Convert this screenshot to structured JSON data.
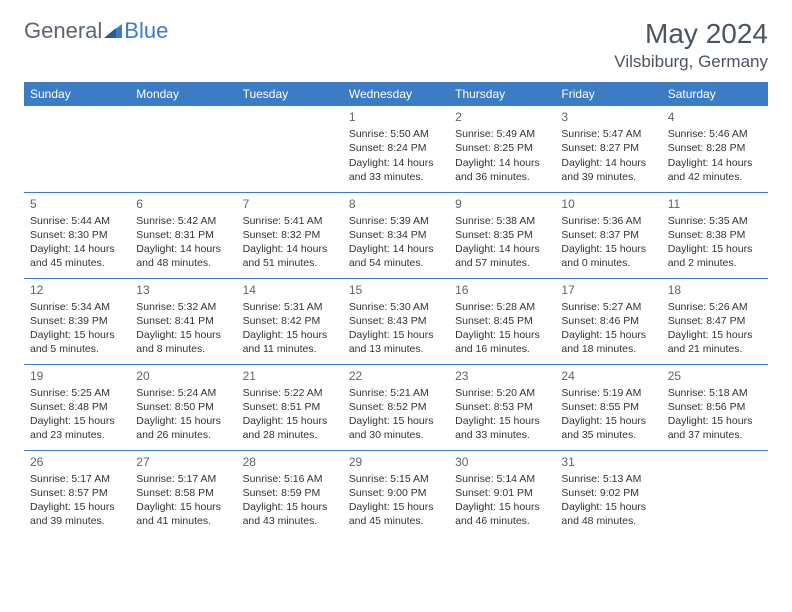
{
  "brand": {
    "word1": "General",
    "word2": "Blue"
  },
  "header": {
    "title": "May 2024",
    "location": "Vilsbiburg, Germany"
  },
  "colors": {
    "accent": "#3b7cc4",
    "text_muted": "#5a6570",
    "text": "#333333",
    "bg": "#ffffff"
  },
  "calendar": {
    "type": "table",
    "days_of_week": [
      "Sunday",
      "Monday",
      "Tuesday",
      "Wednesday",
      "Thursday",
      "Friday",
      "Saturday"
    ],
    "weeks": [
      [
        null,
        null,
        null,
        {
          "n": "1",
          "sr": "Sunrise: 5:50 AM",
          "ss": "Sunset: 8:24 PM",
          "d1": "Daylight: 14 hours",
          "d2": "and 33 minutes."
        },
        {
          "n": "2",
          "sr": "Sunrise: 5:49 AM",
          "ss": "Sunset: 8:25 PM",
          "d1": "Daylight: 14 hours",
          "d2": "and 36 minutes."
        },
        {
          "n": "3",
          "sr": "Sunrise: 5:47 AM",
          "ss": "Sunset: 8:27 PM",
          "d1": "Daylight: 14 hours",
          "d2": "and 39 minutes."
        },
        {
          "n": "4",
          "sr": "Sunrise: 5:46 AM",
          "ss": "Sunset: 8:28 PM",
          "d1": "Daylight: 14 hours",
          "d2": "and 42 minutes."
        }
      ],
      [
        {
          "n": "5",
          "sr": "Sunrise: 5:44 AM",
          "ss": "Sunset: 8:30 PM",
          "d1": "Daylight: 14 hours",
          "d2": "and 45 minutes."
        },
        {
          "n": "6",
          "sr": "Sunrise: 5:42 AM",
          "ss": "Sunset: 8:31 PM",
          "d1": "Daylight: 14 hours",
          "d2": "and 48 minutes."
        },
        {
          "n": "7",
          "sr": "Sunrise: 5:41 AM",
          "ss": "Sunset: 8:32 PM",
          "d1": "Daylight: 14 hours",
          "d2": "and 51 minutes."
        },
        {
          "n": "8",
          "sr": "Sunrise: 5:39 AM",
          "ss": "Sunset: 8:34 PM",
          "d1": "Daylight: 14 hours",
          "d2": "and 54 minutes."
        },
        {
          "n": "9",
          "sr": "Sunrise: 5:38 AM",
          "ss": "Sunset: 8:35 PM",
          "d1": "Daylight: 14 hours",
          "d2": "and 57 minutes."
        },
        {
          "n": "10",
          "sr": "Sunrise: 5:36 AM",
          "ss": "Sunset: 8:37 PM",
          "d1": "Daylight: 15 hours",
          "d2": "and 0 minutes."
        },
        {
          "n": "11",
          "sr": "Sunrise: 5:35 AM",
          "ss": "Sunset: 8:38 PM",
          "d1": "Daylight: 15 hours",
          "d2": "and 2 minutes."
        }
      ],
      [
        {
          "n": "12",
          "sr": "Sunrise: 5:34 AM",
          "ss": "Sunset: 8:39 PM",
          "d1": "Daylight: 15 hours",
          "d2": "and 5 minutes."
        },
        {
          "n": "13",
          "sr": "Sunrise: 5:32 AM",
          "ss": "Sunset: 8:41 PM",
          "d1": "Daylight: 15 hours",
          "d2": "and 8 minutes."
        },
        {
          "n": "14",
          "sr": "Sunrise: 5:31 AM",
          "ss": "Sunset: 8:42 PM",
          "d1": "Daylight: 15 hours",
          "d2": "and 11 minutes."
        },
        {
          "n": "15",
          "sr": "Sunrise: 5:30 AM",
          "ss": "Sunset: 8:43 PM",
          "d1": "Daylight: 15 hours",
          "d2": "and 13 minutes."
        },
        {
          "n": "16",
          "sr": "Sunrise: 5:28 AM",
          "ss": "Sunset: 8:45 PM",
          "d1": "Daylight: 15 hours",
          "d2": "and 16 minutes."
        },
        {
          "n": "17",
          "sr": "Sunrise: 5:27 AM",
          "ss": "Sunset: 8:46 PM",
          "d1": "Daylight: 15 hours",
          "d2": "and 18 minutes."
        },
        {
          "n": "18",
          "sr": "Sunrise: 5:26 AM",
          "ss": "Sunset: 8:47 PM",
          "d1": "Daylight: 15 hours",
          "d2": "and 21 minutes."
        }
      ],
      [
        {
          "n": "19",
          "sr": "Sunrise: 5:25 AM",
          "ss": "Sunset: 8:48 PM",
          "d1": "Daylight: 15 hours",
          "d2": "and 23 minutes."
        },
        {
          "n": "20",
          "sr": "Sunrise: 5:24 AM",
          "ss": "Sunset: 8:50 PM",
          "d1": "Daylight: 15 hours",
          "d2": "and 26 minutes."
        },
        {
          "n": "21",
          "sr": "Sunrise: 5:22 AM",
          "ss": "Sunset: 8:51 PM",
          "d1": "Daylight: 15 hours",
          "d2": "and 28 minutes."
        },
        {
          "n": "22",
          "sr": "Sunrise: 5:21 AM",
          "ss": "Sunset: 8:52 PM",
          "d1": "Daylight: 15 hours",
          "d2": "and 30 minutes."
        },
        {
          "n": "23",
          "sr": "Sunrise: 5:20 AM",
          "ss": "Sunset: 8:53 PM",
          "d1": "Daylight: 15 hours",
          "d2": "and 33 minutes."
        },
        {
          "n": "24",
          "sr": "Sunrise: 5:19 AM",
          "ss": "Sunset: 8:55 PM",
          "d1": "Daylight: 15 hours",
          "d2": "and 35 minutes."
        },
        {
          "n": "25",
          "sr": "Sunrise: 5:18 AM",
          "ss": "Sunset: 8:56 PM",
          "d1": "Daylight: 15 hours",
          "d2": "and 37 minutes."
        }
      ],
      [
        {
          "n": "26",
          "sr": "Sunrise: 5:17 AM",
          "ss": "Sunset: 8:57 PM",
          "d1": "Daylight: 15 hours",
          "d2": "and 39 minutes."
        },
        {
          "n": "27",
          "sr": "Sunrise: 5:17 AM",
          "ss": "Sunset: 8:58 PM",
          "d1": "Daylight: 15 hours",
          "d2": "and 41 minutes."
        },
        {
          "n": "28",
          "sr": "Sunrise: 5:16 AM",
          "ss": "Sunset: 8:59 PM",
          "d1": "Daylight: 15 hours",
          "d2": "and 43 minutes."
        },
        {
          "n": "29",
          "sr": "Sunrise: 5:15 AM",
          "ss": "Sunset: 9:00 PM",
          "d1": "Daylight: 15 hours",
          "d2": "and 45 minutes."
        },
        {
          "n": "30",
          "sr": "Sunrise: 5:14 AM",
          "ss": "Sunset: 9:01 PM",
          "d1": "Daylight: 15 hours",
          "d2": "and 46 minutes."
        },
        {
          "n": "31",
          "sr": "Sunrise: 5:13 AM",
          "ss": "Sunset: 9:02 PM",
          "d1": "Daylight: 15 hours",
          "d2": "and 48 minutes."
        },
        null
      ]
    ]
  }
}
